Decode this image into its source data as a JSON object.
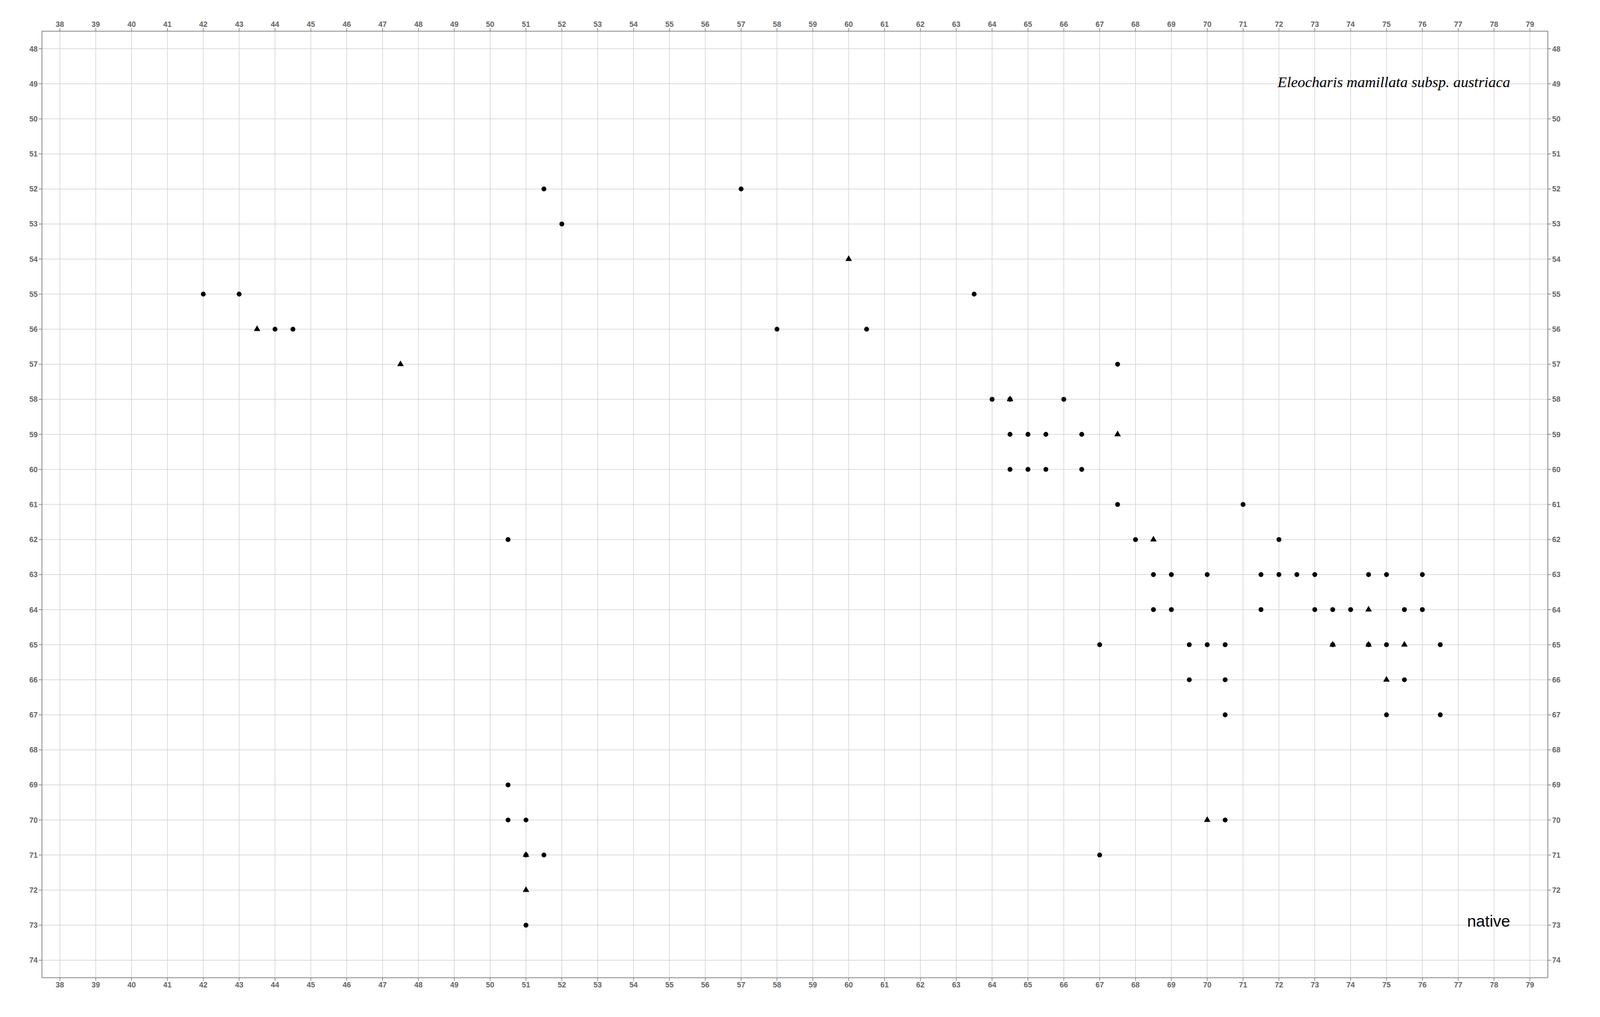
{
  "chart_data": {
    "type": "scatter",
    "title": "Eleocharis mamillata subsp. austriaca",
    "subtitle": "native",
    "xlim": [
      37.5,
      79.5
    ],
    "xticks": [
      38,
      39,
      40,
      41,
      42,
      43,
      44,
      45,
      46,
      47,
      48,
      49,
      50,
      51,
      52,
      53,
      54,
      55,
      56,
      57,
      58,
      59,
      60,
      61,
      62,
      63,
      64,
      65,
      66,
      67,
      68,
      69,
      70,
      71,
      72,
      73,
      74,
      75,
      76,
      77,
      78,
      79
    ],
    "ylim": [
      74.5,
      47.5
    ],
    "yticks": [
      48,
      49,
      50,
      51,
      52,
      53,
      54,
      55,
      56,
      57,
      58,
      59,
      60,
      61,
      62,
      63,
      64,
      65,
      66,
      67,
      68,
      69,
      70,
      71,
      72,
      73,
      74
    ],
    "grid": true,
    "series": [
      {
        "type": "scatter",
        "marker": "circle",
        "color": "#000000",
        "x": [
          42.0,
          43.0,
          44.5,
          44.0,
          51.5,
          52.0,
          57.0,
          58.0,
          60.5,
          63.5,
          64.0,
          64.5,
          64.5,
          65.0,
          65.5,
          64.5,
          65.0,
          65.5,
          66.0,
          66.5,
          66.5,
          67.5,
          67.5,
          68.0,
          68.5,
          68.5,
          69.0,
          69.0,
          69.5,
          69.5,
          70.0,
          70.0,
          70.5,
          70.5,
          70.5,
          71.0,
          71.5,
          71.5,
          72.0,
          72.0,
          72.5,
          73.0,
          73.0,
          73.5,
          73.5,
          74.0,
          74.5,
          74.5,
          75.0,
          75.0,
          75.0,
          75.5,
          75.5,
          76.0,
          76.0,
          76.5,
          76.5,
          50.5,
          50.5,
          51.0,
          51.0,
          51.5,
          51.0,
          50.5,
          67.0,
          67.0,
          70.5
        ],
        "values": [
          55.0,
          55.0,
          56.0,
          56.0,
          52.0,
          53.0,
          52.0,
          56.0,
          56.0,
          55.0,
          58.0,
          58.0,
          59.0,
          59.0,
          59.0,
          60.0,
          60.0,
          60.0,
          58.0,
          59.0,
          60.0,
          57.0,
          61.0,
          62.0,
          63.0,
          64.0,
          63.0,
          64.0,
          65.0,
          66.0,
          63.0,
          65.0,
          65.0,
          66.0,
          67.0,
          61.0,
          63.0,
          64.0,
          62.0,
          63.0,
          63.0,
          63.0,
          64.0,
          64.0,
          65.0,
          64.0,
          63.0,
          65.0,
          63.0,
          65.0,
          67.0,
          64.0,
          66.0,
          63.0,
          64.0,
          65.0,
          67.0,
          69.0,
          70.0,
          70.0,
          71.0,
          71.0,
          73.0,
          62.0,
          65.0,
          71.0,
          70.0
        ]
      },
      {
        "type": "scatter",
        "marker": "triangle",
        "color": "#000000",
        "x": [
          43.5,
          47.5,
          60.0,
          64.5,
          67.5,
          68.5,
          51.0,
          51.0,
          73.5,
          74.5,
          74.5,
          75.0,
          75.5,
          70.0
        ],
        "values": [
          56.0,
          57.0,
          54.0,
          58.0,
          59.0,
          62.0,
          71.0,
          72.0,
          65.0,
          64.0,
          65.0,
          66.0,
          65.0,
          70.0
        ]
      }
    ]
  }
}
